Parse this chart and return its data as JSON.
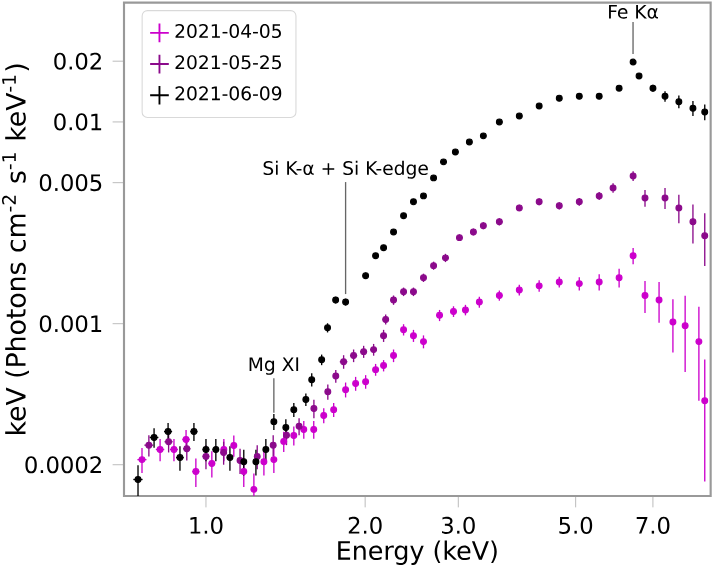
{
  "chart_data": {
    "type": "scatter",
    "log": "xy",
    "marker": "circle",
    "legend": "top left",
    "xlabel": "Energy (keV)",
    "ylabel": "keV (Photons cm$^{-2}$ s$^{-1}$ keV$^{-1}$)",
    "xlim": [
      0.7,
      9.0
    ],
    "ylim": [
      0.00014,
      0.039
    ],
    "xticks": [
      {
        "value": 1,
        "label": "1.0"
      },
      {
        "value": 2,
        "label": "2.0"
      },
      {
        "value": 3,
        "label": "3.0"
      },
      {
        "value": 5,
        "label": "5.0"
      },
      {
        "value": 7,
        "label": "7.0"
      }
    ],
    "yticks": [
      0.0002,
      0.001,
      0.005,
      0.01,
      0.02
    ],
    "annotations": [
      {
        "text": "Fe Kα",
        "x": 6.42,
        "y": 0.0198
      },
      {
        "text": "Si K-α + Si K-edge",
        "x": 1.837,
        "y": 0.00128
      },
      {
        "text": "Mg XI",
        "x": 1.344,
        "y": 0.00033
      }
    ],
    "series": [
      {
        "name": "2021-04-05",
        "color": "#cc00cc",
        "x": [
          0.757,
          0.819,
          0.87,
          0.917,
          0.957,
          1.026,
          1.081,
          1.129,
          1.179,
          1.232,
          1.287,
          1.344,
          1.403,
          1.466,
          1.531,
          1.599,
          1.67,
          1.744,
          1.837,
          1.919,
          2.004,
          2.093,
          2.167,
          2.263,
          2.364,
          2.468,
          2.578,
          2.765,
          2.938,
          3.095,
          3.288,
          3.587,
          3.913,
          4.266,
          4.656,
          5.08,
          5.54,
          6.042,
          6.422,
          6.763,
          7.19,
          7.638,
          8.054,
          8.551,
          8.772
        ],
        "values": [
          0.000212,
          0.000238,
          0.000238,
          0.000267,
          0.000185,
          0.000203,
          0.000238,
          0.000249,
          0.000185,
          0.000151,
          0.000207,
          0.000212,
          0.000261,
          0.000279,
          0.000299,
          0.000299,
          0.000351,
          0.000375,
          0.000471,
          0.000505,
          0.000516,
          0.000592,
          0.00062,
          0.000695,
          0.000934,
          0.000872,
          0.000815,
          0.0011,
          0.00115,
          0.00117,
          0.00128,
          0.00138,
          0.00147,
          0.00154,
          0.00161,
          0.00158,
          0.00161,
          0.00169,
          0.00217,
          0.00138,
          0.00131,
          0.00102,
          0.000977,
          0.000815,
          0.000415
        ],
        "errors": [
          3e-05,
          3e-05,
          3e-05,
          3e-05,
          3e-05,
          3e-05,
          3e-05,
          3e-05,
          3e-05,
          3e-05,
          3e-05,
          3e-05,
          3e-05,
          3e-05,
          3e-05,
          3e-05,
          3e-05,
          3e-05,
          4e-05,
          4e-05,
          4e-05,
          4e-05,
          4e-05,
          5e-05,
          6e-05,
          6e-05,
          6e-05,
          7e-05,
          7e-05,
          7e-05,
          8e-05,
          8e-05,
          9e-05,
          0.0001,
          0.0001,
          0.00012,
          0.00015,
          0.00018,
          0.0002,
          0.00025,
          0.0003,
          0.0003,
          0.0004,
          0.0004,
          0.00025
        ],
        "xerrors": [
          0.015,
          0.015,
          0.015,
          0.015,
          0.015,
          0.015,
          0.015,
          0.015,
          0.015,
          0.015,
          0.015,
          0.015,
          0.015,
          0.015,
          0.015,
          0.015,
          0.015,
          0.015,
          0.015,
          0.015,
          0.025,
          0.025,
          0.025,
          0.025,
          0.025,
          0.025,
          0.025,
          0.04,
          0.04,
          0.04,
          0.04,
          0.05,
          0.05,
          0.05,
          0.05,
          0.06,
          0.06,
          0.06,
          0.06,
          0.06,
          0.08,
          0.08,
          0.08,
          0.08,
          0.08
        ]
      },
      {
        "name": "2021-05-25",
        "color": "#8b0a8b",
        "x": [
          0.78,
          0.85,
          0.92,
          1.0,
          1.08,
          1.16,
          1.25,
          1.34,
          1.42,
          1.5,
          1.6,
          1.7,
          1.76,
          1.821,
          1.902,
          1.987,
          2.075,
          2.167,
          2.187,
          2.263,
          2.364,
          2.468,
          2.578,
          2.694,
          2.837,
          3.015,
          3.204,
          3.346,
          3.587,
          3.913,
          4.266,
          4.656,
          5.08,
          5.54,
          5.885,
          6.422,
          6.763,
          7.379,
          7.838,
          8.332,
          8.772
        ],
        "values": [
          0.00025,
          0.00026,
          0.00024,
          0.00022,
          0.00023,
          0.00021,
          0.00022,
          0.00025,
          0.00028,
          0.00031,
          0.00038,
          0.00046,
          0.00055,
          0.000648,
          0.000695,
          0.000727,
          0.000744,
          0.000872,
          0.00105,
          0.00131,
          0.00144,
          0.00144,
          0.00169,
          0.00194,
          0.00212,
          0.00267,
          0.00285,
          0.00306,
          0.0032,
          0.00375,
          0.00402,
          0.00384,
          0.00402,
          0.0043,
          0.00471,
          0.0054,
          0.0042,
          0.0042,
          0.00375,
          0.0032,
          0.00273
        ],
        "errors": [
          3e-05,
          3e-05,
          3e-05,
          3e-05,
          3e-05,
          3e-05,
          3e-05,
          3e-05,
          3e-05,
          3e-05,
          4e-05,
          4e-05,
          4e-05,
          5e-05,
          5e-05,
          5e-05,
          5e-05,
          6e-05,
          6e-05,
          7e-05,
          7e-05,
          7e-05,
          8e-05,
          9e-05,
          0.0001,
          0.0001,
          0.00011,
          0.00012,
          0.00013,
          0.00014,
          0.00015,
          0.00016,
          0.00018,
          0.0002,
          0.00025,
          0.0003,
          0.0004,
          0.0005,
          0.0006,
          0.0007,
          0.0008
        ],
        "xerrors": [
          0.015,
          0.015,
          0.015,
          0.015,
          0.015,
          0.015,
          0.015,
          0.015,
          0.015,
          0.015,
          0.015,
          0.015,
          0.015,
          0.03,
          0.03,
          0.03,
          0.03,
          0.03,
          0.03,
          0.03,
          0.03,
          0.03,
          0.03,
          0.03,
          0.04,
          0.04,
          0.04,
          0.04,
          0.05,
          0.05,
          0.05,
          0.05,
          0.06,
          0.06,
          0.06,
          0.06,
          0.06,
          0.08,
          0.08,
          0.08,
          0.08
        ]
      },
      {
        "name": "2021-06-09",
        "color": "#000000",
        "x": [
          0.744,
          0.798,
          0.848,
          0.893,
          0.949,
          1.0,
          1.044,
          1.11,
          1.179,
          1.243,
          1.298,
          1.344,
          1.416,
          1.466,
          1.545,
          1.585,
          1.655,
          1.698,
          1.759,
          1.837,
          2.004,
          2.093,
          2.167,
          2.263,
          2.364,
          2.468,
          2.578,
          2.694,
          2.813,
          2.962,
          3.148,
          3.346,
          3.587,
          3.913,
          4.266,
          4.656,
          5.08,
          5.54,
          6.042,
          6.422,
          6.59,
          7.001,
          7.379,
          7.838,
          8.332,
          8.772
        ],
        "values": [
          0.000169,
          0.000273,
          0.000292,
          0.000217,
          0.000292,
          0.000238,
          0.000238,
          0.000217,
          0.000207,
          0.000207,
          0.000238,
          0.000327,
          0.000306,
          0.000375,
          0.000421,
          0.000528,
          0.000663,
          0.000955,
          0.00131,
          0.00128,
          0.00173,
          0.00217,
          0.00238,
          0.00285,
          0.00343,
          0.00402,
          0.0043,
          0.00528,
          0.00634,
          0.0071,
          0.00796,
          0.00853,
          0.01,
          0.0107,
          0.012,
          0.0131,
          0.0134,
          0.0134,
          0.0147,
          0.0198,
          0.0169,
          0.0147,
          0.0134,
          0.0126,
          0.0117,
          0.0112
        ],
        "errors": [
          3e-05,
          3e-05,
          3e-05,
          3e-05,
          3e-05,
          3e-05,
          3e-05,
          3e-05,
          3e-05,
          3e-05,
          3e-05,
          3e-05,
          3e-05,
          3e-05,
          3e-05,
          4e-05,
          4e-05,
          5e-05,
          5e-05,
          5e-05,
          6e-05,
          7e-05,
          7e-05,
          8e-05,
          9e-05,
          0.0001,
          0.0001,
          0.00012,
          0.00014,
          0.00015,
          0.00016,
          0.00017,
          0.0002,
          0.0002,
          0.00025,
          0.0003,
          0.0003,
          0.0003,
          0.0004,
          0.0005,
          0.0005,
          0.0006,
          0.0008,
          0.0009,
          0.001,
          0.001
        ],
        "xerrors": [
          0.015,
          0.015,
          0.015,
          0.015,
          0.015,
          0.015,
          0.015,
          0.015,
          0.015,
          0.015,
          0.015,
          0.015,
          0.015,
          0.015,
          0.015,
          0.015,
          0.015,
          0.015,
          0.015,
          0.015,
          0.025,
          0.025,
          0.025,
          0.025,
          0.025,
          0.025,
          0.025,
          0.025,
          0.04,
          0.04,
          0.04,
          0.04,
          0.05,
          0.05,
          0.05,
          0.05,
          0.06,
          0.06,
          0.06,
          0.06,
          0.06,
          0.08,
          0.08,
          0.08,
          0.08,
          0.08
        ]
      }
    ]
  }
}
